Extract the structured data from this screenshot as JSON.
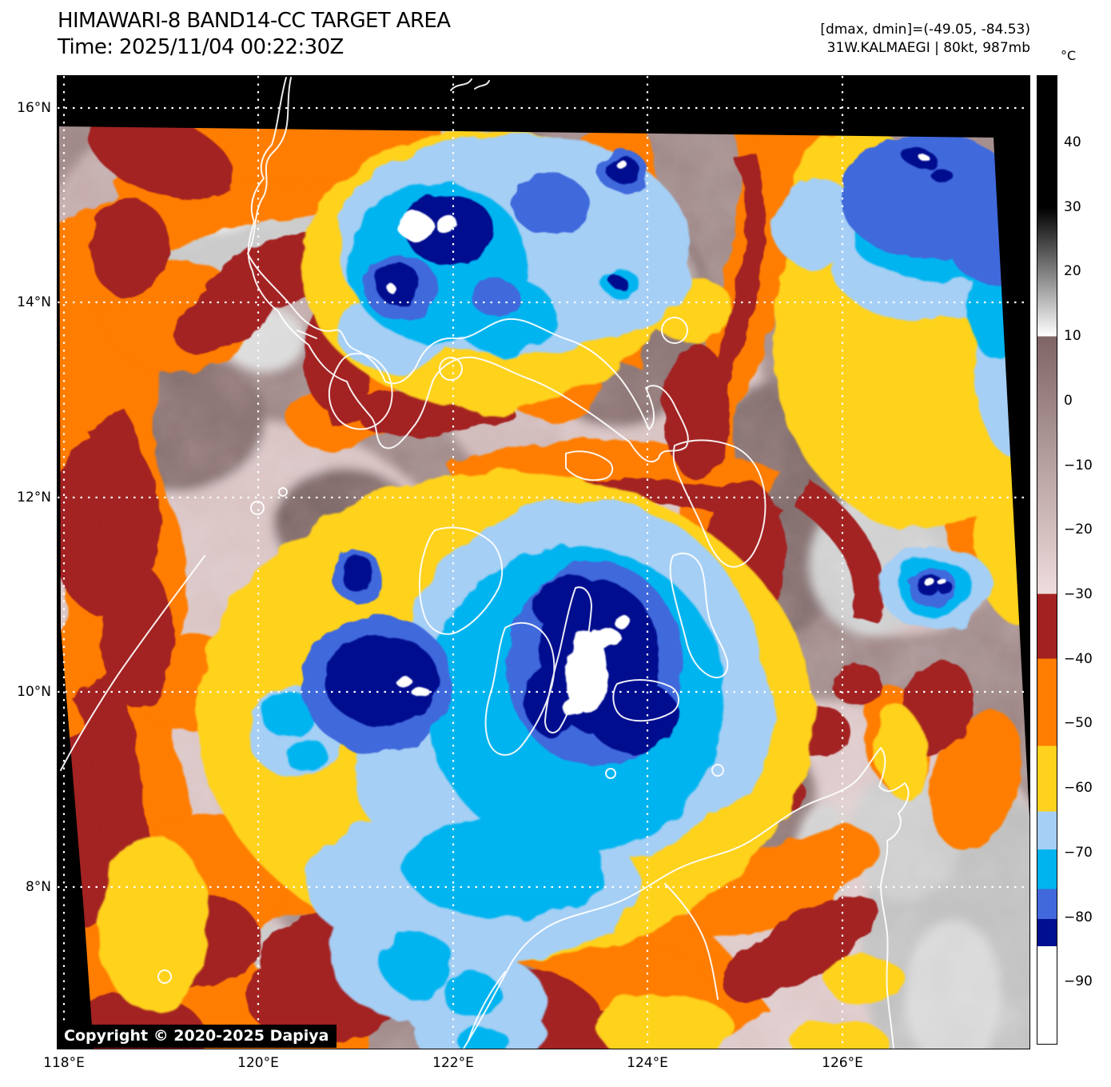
{
  "header": {
    "title": "HIMAWARI-8 BAND14-CC TARGET AREA",
    "time": "Time: 2025/11/04 00:22:30Z",
    "dmax_dmin": "[dmax, dmin]=(-49.05, -84.53)",
    "storm_info": "31W.KALMAEGI | 80kt, 987mb"
  },
  "axes": {
    "lat_tick_labels": [
      "16°N",
      "14°N",
      "12°N",
      "10°N",
      "8°N"
    ],
    "lon_tick_labels": [
      "118°E",
      "120°E",
      "122°E",
      "124°E",
      "126°E"
    ]
  },
  "colorbar": {
    "unit_label": "°C",
    "tick_labels": [
      "40",
      "30",
      "20",
      "10",
      "0",
      "−10",
      "−20",
      "−30",
      "−40",
      "−50",
      "−60",
      "−70",
      "−80",
      "−90"
    ],
    "scale_segments": [
      {
        "temp_from_c": 50,
        "temp_to_c": 30,
        "color": "#000000"
      },
      {
        "temp_from_c": 30,
        "temp_to_c": 10,
        "color_top": "#000000",
        "color_bottom": "#ffffff"
      },
      {
        "temp_from_c": 10,
        "temp_to_c": -30,
        "color_top": "#7f6565",
        "color_bottom": "#efdcdc"
      },
      {
        "temp_from_c": -30,
        "temp_to_c": -40,
        "color": "#a32121"
      },
      {
        "temp_from_c": -40,
        "temp_to_c": -53,
        "color": "#ff7d00"
      },
      {
        "temp_from_c": -53,
        "temp_to_c": -63,
        "color": "#ffd21e"
      },
      {
        "temp_from_c": -63,
        "temp_to_c": -69,
        "color": "#a5cff5"
      },
      {
        "temp_from_c": -69,
        "temp_to_c": -75,
        "color": "#00b4ef"
      },
      {
        "temp_from_c": -75,
        "temp_to_c": -80,
        "color": "#4169dc"
      },
      {
        "temp_from_c": -80,
        "temp_to_c": -84.5,
        "color": "#000f8f"
      },
      {
        "temp_from_c": -84.5,
        "temp_to_c": -99,
        "color": "#ffffff"
      }
    ]
  },
  "footer": {
    "copyright": "Copyright © 2020-2025 Dapiya"
  }
}
